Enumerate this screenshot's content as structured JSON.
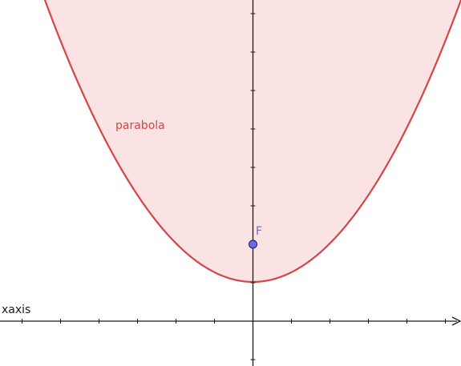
{
  "curve": {
    "label": "parabola",
    "stroke_color": "#d64545",
    "fill_color": "#fbe3e4"
  },
  "focus": {
    "label": "F",
    "color": "#6b6bdc"
  },
  "axes": {
    "x_label": "xaxis",
    "color": "#1a1a1a"
  }
}
